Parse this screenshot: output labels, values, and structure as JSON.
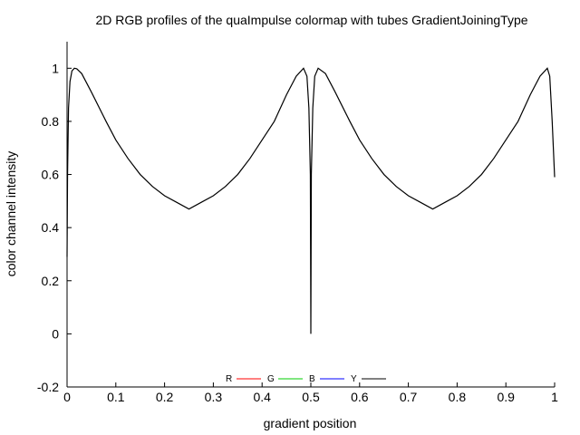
{
  "chart_data": {
    "type": "line",
    "title": "2D RGB profiles of the quaImpulse colormap with tubes GradientJoiningType",
    "xlabel": "gradient position",
    "ylabel": "color channel intensity",
    "xlim": [
      0,
      1
    ],
    "ylim": [
      -0.2,
      1.1
    ],
    "xticks": [
      0,
      0.1,
      0.2,
      0.3,
      0.4,
      0.5,
      0.6,
      0.7,
      0.8,
      0.9,
      1
    ],
    "xtick_labels": [
      "0",
      "0.1",
      "0.2",
      "0.3",
      "0.4",
      "0.5",
      "0.6",
      "0.7",
      "0.8",
      "0.9",
      "1"
    ],
    "yticks": [
      -0.2,
      0,
      0.2,
      0.4,
      0.6,
      0.8,
      1
    ],
    "ytick_labels": [
      "-0.2",
      "0",
      "0.2",
      "0.4",
      "0.6",
      "0.8",
      "1"
    ],
    "grid": false,
    "legend_position": "bottom-center",
    "series": [
      {
        "name": "R",
        "color": "#ff0000",
        "x": [],
        "y": []
      },
      {
        "name": "G",
        "color": "#00cc00",
        "x": [],
        "y": []
      },
      {
        "name": "B",
        "color": "#0000ff",
        "x": [],
        "y": []
      },
      {
        "name": "Y",
        "color": "#000000",
        "x": [
          0,
          0.001,
          0.003,
          0.006,
          0.01,
          0.015,
          0.02,
          0.03,
          0.05,
          0.08,
          0.1,
          0.125,
          0.15,
          0.175,
          0.2,
          0.225,
          0.25,
          0.275,
          0.3,
          0.325,
          0.35,
          0.375,
          0.4,
          0.425,
          0.45,
          0.47,
          0.485,
          0.492,
          0.496,
          0.499,
          0.4995,
          0.5,
          0.5005,
          0.501,
          0.504,
          0.508,
          0.515,
          0.53,
          0.55,
          0.58,
          0.6,
          0.625,
          0.65,
          0.675,
          0.7,
          0.725,
          0.75,
          0.775,
          0.8,
          0.825,
          0.85,
          0.875,
          0.9,
          0.925,
          0.95,
          0.97,
          0.985,
          0.99,
          0.995,
          1
        ],
        "y": [
          0.29,
          0.6,
          0.85,
          0.95,
          0.99,
          1.0,
          0.998,
          0.98,
          0.91,
          0.8,
          0.73,
          0.66,
          0.6,
          0.555,
          0.52,
          0.495,
          0.47,
          0.495,
          0.52,
          0.555,
          0.6,
          0.66,
          0.73,
          0.8,
          0.9,
          0.97,
          1.0,
          0.97,
          0.85,
          0.6,
          0.3,
          0.0,
          0.3,
          0.6,
          0.85,
          0.97,
          1.0,
          0.98,
          0.91,
          0.8,
          0.73,
          0.66,
          0.6,
          0.555,
          0.52,
          0.495,
          0.47,
          0.495,
          0.52,
          0.555,
          0.6,
          0.66,
          0.73,
          0.8,
          0.9,
          0.97,
          1.0,
          0.97,
          0.8,
          0.59
        ]
      }
    ]
  }
}
